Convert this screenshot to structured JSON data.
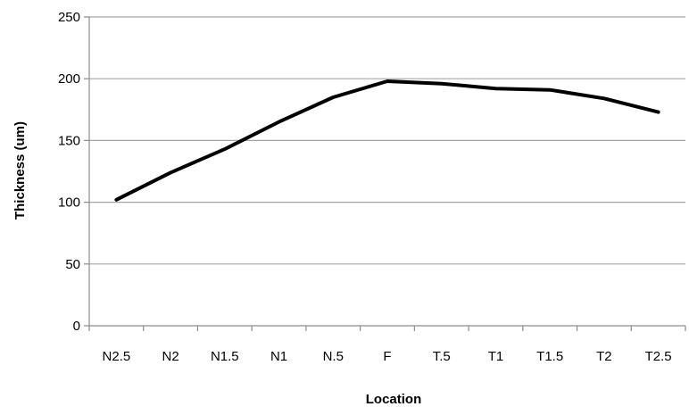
{
  "chart_data": {
    "type": "line",
    "title": "",
    "xlabel": "Location",
    "ylabel": "Thickness (um)",
    "categories": [
      "N2.5",
      "N2",
      "N1.5",
      "N1",
      "N.5",
      "F",
      "T.5",
      "T1",
      "T1.5",
      "T2",
      "T2.5"
    ],
    "series": [
      {
        "values": [
          102,
          124,
          143,
          165,
          185,
          198,
          196,
          192,
          191,
          184,
          173
        ]
      }
    ],
    "ylim": [
      0,
      250
    ],
    "yticks": [
      0,
      50,
      100,
      150,
      200,
      250
    ],
    "grid": true,
    "legend": "none",
    "line_color": "#000000"
  }
}
